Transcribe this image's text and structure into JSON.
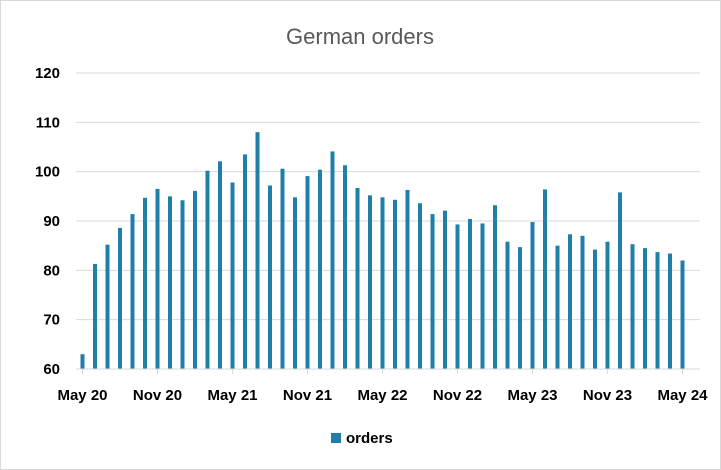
{
  "chart_data": {
    "type": "bar",
    "title": "German orders",
    "xlabel": "",
    "ylabel": "",
    "ylim": [
      60,
      120
    ],
    "yticks": [
      "60",
      "70",
      "80",
      "90",
      "100",
      "110",
      "120"
    ],
    "xtick_labels": [
      "May 20",
      "Nov 20",
      "May 21",
      "Nov 21",
      "May 22",
      "Nov 22",
      "May 23",
      "Nov 23",
      "May 24"
    ],
    "grid": true,
    "legend_position": "bottom",
    "color": "#1f7fa6",
    "categories": [
      "2020-05",
      "2020-06",
      "2020-07",
      "2020-08",
      "2020-09",
      "2020-10",
      "2020-11",
      "2020-12",
      "2021-01",
      "2021-02",
      "2021-03",
      "2021-04",
      "2021-05",
      "2021-06",
      "2021-07",
      "2021-08",
      "2021-09",
      "2021-10",
      "2021-11",
      "2021-12",
      "2022-01",
      "2022-02",
      "2022-03",
      "2022-04",
      "2022-05",
      "2022-06",
      "2022-07",
      "2022-08",
      "2022-09",
      "2022-10",
      "2022-11",
      "2022-12",
      "2023-01",
      "2023-02",
      "2023-03",
      "2023-04",
      "2023-05",
      "2023-06",
      "2023-07",
      "2023-08",
      "2023-09",
      "2023-10",
      "2023-11",
      "2023-12",
      "2024-01",
      "2024-02",
      "2024-03",
      "2024-04",
      "2024-05"
    ],
    "series": [
      {
        "name": "orders",
        "values": [
          63.0,
          81.3,
          85.2,
          88.6,
          91.4,
          94.7,
          96.5,
          95.0,
          94.2,
          96.1,
          100.2,
          102.1,
          97.8,
          103.5,
          108.0,
          97.2,
          100.6,
          94.8,
          99.1,
          100.4,
          104.1,
          101.3,
          96.7,
          95.2,
          94.8,
          94.3,
          96.3,
          93.6,
          91.4,
          92.1,
          89.3,
          90.4,
          89.5,
          93.2,
          85.8,
          84.7,
          89.8,
          96.4,
          85.0,
          87.3,
          87.0,
          84.2,
          85.8,
          95.8,
          85.3,
          84.5,
          83.7,
          83.4,
          82.0
        ]
      }
    ]
  }
}
